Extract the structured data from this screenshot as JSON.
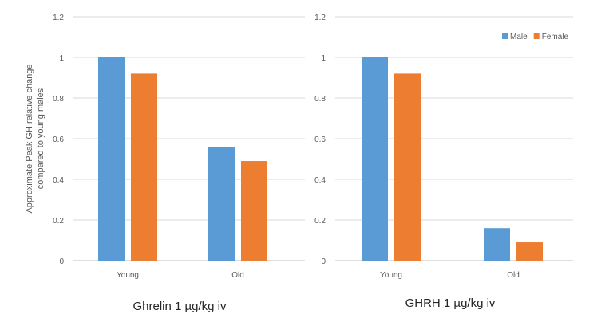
{
  "chart_data": [
    {
      "type": "bar",
      "title": "Ghrelin 1 µg/kg iv",
      "ylabel": "Approximate Peak GH relative change compared to young males",
      "ylabel_lines": [
        "Approximate Peak GH relative change",
        "compared to young males"
      ],
      "xlabel": "",
      "categories": [
        "Young",
        "Old"
      ],
      "series": [
        {
          "name": "Male",
          "color": "#5b9bd5",
          "values": [
            1.0,
            0.56
          ]
        },
        {
          "name": "Female",
          "color": "#ed7d31",
          "values": [
            0.92,
            0.49
          ]
        }
      ],
      "ylim": [
        0,
        1.2
      ],
      "yticks": [
        0,
        0.2,
        0.4,
        0.6,
        0.8,
        1,
        1.2
      ],
      "yticklabels": [
        "0",
        "0.2",
        "0.4",
        "0.6",
        "0.8",
        "1",
        "1.2"
      ],
      "grid": true,
      "legend": false
    },
    {
      "type": "bar",
      "title": "GHRH 1 µg/kg iv",
      "ylabel": "",
      "xlabel": "",
      "categories": [
        "Young",
        "Old"
      ],
      "series": [
        {
          "name": "Male",
          "color": "#5b9bd5",
          "values": [
            1.0,
            0.16
          ]
        },
        {
          "name": "Female",
          "color": "#ed7d31",
          "values": [
            0.92,
            0.09
          ]
        }
      ],
      "ylim": [
        0,
        1.2
      ],
      "yticks": [
        0,
        0.2,
        0.4,
        0.6,
        0.8,
        1,
        1.2
      ],
      "yticklabels": [
        "0",
        "0.2",
        "0.4",
        "0.6",
        "0.8",
        "1",
        "1.2"
      ],
      "grid": true,
      "legend": true,
      "legend_position": "top-right"
    }
  ]
}
